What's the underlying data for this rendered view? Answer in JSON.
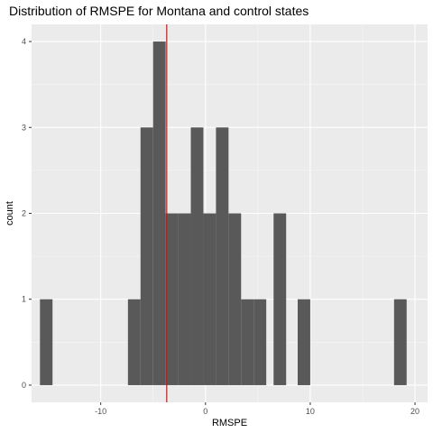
{
  "chart_data": {
    "type": "histogram",
    "title": "Distribution of RMSPE for Montana and control states",
    "xlabel": "RMSPE",
    "ylabel": "count",
    "xlim": [
      -16.6,
      21.2
    ],
    "ylim": [
      -0.2,
      4.2
    ],
    "x_ticks": [
      -10,
      0,
      10,
      20
    ],
    "y_ticks": [
      0,
      1,
      2,
      3,
      4
    ],
    "bin_width": 1.2,
    "bins": [
      {
        "x0": -15.8,
        "x1": -14.6,
        "count": 1
      },
      {
        "x0": -7.4,
        "x1": -6.2,
        "count": 1
      },
      {
        "x0": -6.2,
        "x1": -5.0,
        "count": 3
      },
      {
        "x0": -5.0,
        "x1": -3.8,
        "count": 4
      },
      {
        "x0": -3.8,
        "x1": -2.6,
        "count": 2
      },
      {
        "x0": -2.6,
        "x1": -1.4,
        "count": 2
      },
      {
        "x0": -1.4,
        "x1": -0.2,
        "count": 3
      },
      {
        "x0": -0.2,
        "x1": 1.0,
        "count": 2
      },
      {
        "x0": 1.0,
        "x1": 2.2,
        "count": 3
      },
      {
        "x0": 2.2,
        "x1": 3.4,
        "count": 2
      },
      {
        "x0": 3.4,
        "x1": 4.6,
        "count": 1
      },
      {
        "x0": 4.6,
        "x1": 5.8,
        "count": 1
      },
      {
        "x0": 6.5,
        "x1": 7.7,
        "count": 2
      },
      {
        "x0": 8.8,
        "x1": 10.0,
        "count": 1
      },
      {
        "x0": 18.0,
        "x1": 19.2,
        "count": 1
      }
    ],
    "vline": {
      "x": -3.7,
      "color": "#b22222"
    },
    "bar_color": "#595959",
    "panel_background": "#ebebeb",
    "grid": true
  }
}
